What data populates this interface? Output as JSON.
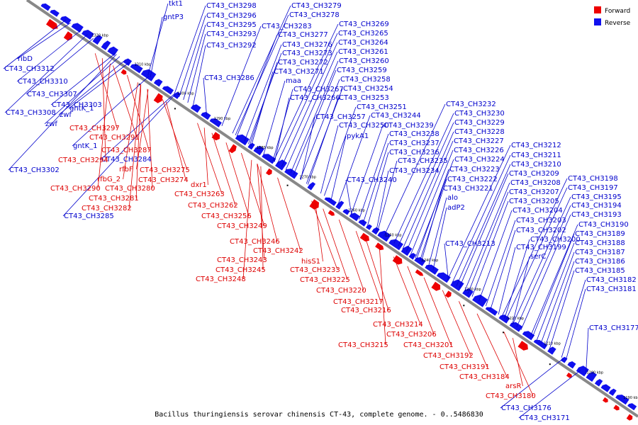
{
  "caption": "Bacillus thuringiensis serovar chinensis CT-43, complete genome. - 0..5486830",
  "legend": {
    "forward": {
      "label": "Forward",
      "color": "#ee0000"
    },
    "reverse": {
      "label": "Reverse",
      "color": "#1010ee"
    }
  },
  "ticks": [
    "1320 kbp",
    "1310 kbp",
    "1300 kbp",
    "1290 kbp",
    "1280 kbp",
    "1270 kbp",
    "1260 kbp",
    "1250 kbp",
    "1240 kbp",
    "1230 kbp",
    "1220 kbp",
    "1210 kbp",
    "1200 kbp",
    "1190 kbp"
  ],
  "reverse_labels": [
    "tkt1",
    "gntP3",
    "CT43_CH3298",
    "CT43_CH3296",
    "CT43_CH3295",
    "CT43_CH3293",
    "CT43_CH3292",
    "CT43_CH3283",
    "CT43_CH3286",
    "CT43_CH3279",
    "CT43_CH3278",
    "CT43_CH3277",
    "CT43_CH3276",
    "CT43_CH3273",
    "CT43_CH3272",
    "CT43_CH3271",
    "maa",
    "CT43_CH3267",
    "CT43_CH3266",
    "CT43_CH3269",
    "CT43_CH3265",
    "CT43_CH3264",
    "CT43_CH3261",
    "CT43_CH3260",
    "CT43_CH3259",
    "CT43_CH3258",
    "CT43_CH3254",
    "CT43_CH3253",
    "CT43_CH3251",
    "CT43_CH3257",
    "CT43_CH3244",
    "CT43_CH3250",
    "CT43_CH3239",
    "pykA1",
    "CT43_CH3238",
    "CT43_CH3237",
    "CT43_CH3236",
    "CT43_CH3235",
    "CT43_CH3234",
    "CT43_CH3240",
    "CT43_CH3232",
    "CT43_CH3230",
    "CT43_CH3229",
    "CT43_CH3228",
    "CT43_CH3227",
    "CT43_CH3226",
    "CT43_CH3224",
    "CT43_CH3223",
    "CT43_CH3222",
    "CT43_CH3221",
    "alo",
    "adP2",
    "CT43_CH3213",
    "CT43_CH3212",
    "CT43_CH3211",
    "CT43_CH3210",
    "CT43_CH3209",
    "CT43_CH3208",
    "CT43_CH3207",
    "CT43_CH3205",
    "CT43_CH3204",
    "CT43_CH3203",
    "CT43_CH3202",
    "CT43_CH3200",
    "CT43_CH3199",
    "serC",
    "CT43_CH3198",
    "CT43_CH3197",
    "CT43_CH3195",
    "CT43_CH3194",
    "CT43_CH3193",
    "CT43_CH3190",
    "CT43_CH3189",
    "CT43_CH3188",
    "CT43_CH3187",
    "CT43_CH3186",
    "CT43_CH3185",
    "CT43_CH3182",
    "CT43_CH3181",
    "CT43_CH3177",
    "CT43_CH3176",
    "CT43_CH3171",
    "ribD",
    "CT43_CH3312",
    "CT43_CH3310",
    "CT43_CH3307",
    "CT43_CH3303",
    "CT43_CH3308",
    "zwf",
    "zwf",
    "gntK_1",
    "gntK_1",
    "CT43_CH3302",
    "CT43_CH3284",
    "CT43_CH3285"
  ],
  "forward_labels": [
    "CT43_CH3297",
    "CT43_CH3291",
    "CT43_CH3287",
    "CT43_CH3294",
    "rfbF",
    "rfbG_2",
    "CT43_CH3290",
    "CT43_CH3280",
    "CT43_CH3281",
    "CT43_CH3282",
    "CT43_CH3275",
    "CT43_CH3274",
    "dxr1",
    "CT43_CH3263",
    "CT43_CH3262",
    "CT43_CH3256",
    "CT43_CH3249",
    "CT43_CH3246",
    "CT43_CH3242",
    "CT43_CH3243",
    "CT43_CH3245",
    "CT43_CH3248",
    "hisS1",
    "CT43_CH3233",
    "CT43_CH3225",
    "CT43_CH3220",
    "CT43_CH3217",
    "CT43_CH3216",
    "CT43_CH3214",
    "CT43_CH3206",
    "CT43_CH3215",
    "CT43_CH3201",
    "CT43_CH3192",
    "CT43_CH3191",
    "CT43_CH3184",
    "arsR",
    "CT43_CH3180"
  ]
}
